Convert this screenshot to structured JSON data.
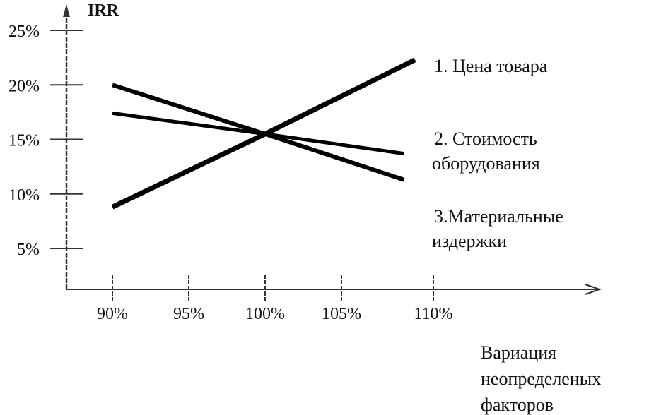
{
  "chart_data": {
    "type": "line",
    "title": "",
    "ylabel": "IRR",
    "xlabel_lines": [
      "Вариация",
      "неопределеных",
      "факторов"
    ],
    "x_ticks": [
      "90%",
      "95%",
      "100%",
      "105%",
      "110%"
    ],
    "x_tick_values": [
      90,
      95,
      100,
      105,
      110
    ],
    "y_ticks": [
      "5%",
      "10%",
      "15%",
      "20%",
      "25%"
    ],
    "y_tick_values": [
      5,
      10,
      15,
      20,
      25
    ],
    "grid": false,
    "legend_placement": "right, labels at line ends",
    "series": [
      {
        "name_lines": [
          "1. Цена товара"
        ],
        "x": [
          90,
          100,
          109
        ],
        "y": [
          8.8,
          15.5,
          22.3
        ]
      },
      {
        "name_lines": [
          "2. Стоимость",
          "оборудования"
        ],
        "x": [
          90,
          100,
          108.4
        ],
        "y": [
          17.4,
          15.5,
          13.7
        ]
      },
      {
        "name_lines": [
          "3.Материальные",
          "издержки"
        ],
        "x": [
          90,
          100,
          108.4
        ],
        "y": [
          20,
          15.5,
          11.3
        ]
      }
    ],
    "line_color": "#000000"
  }
}
